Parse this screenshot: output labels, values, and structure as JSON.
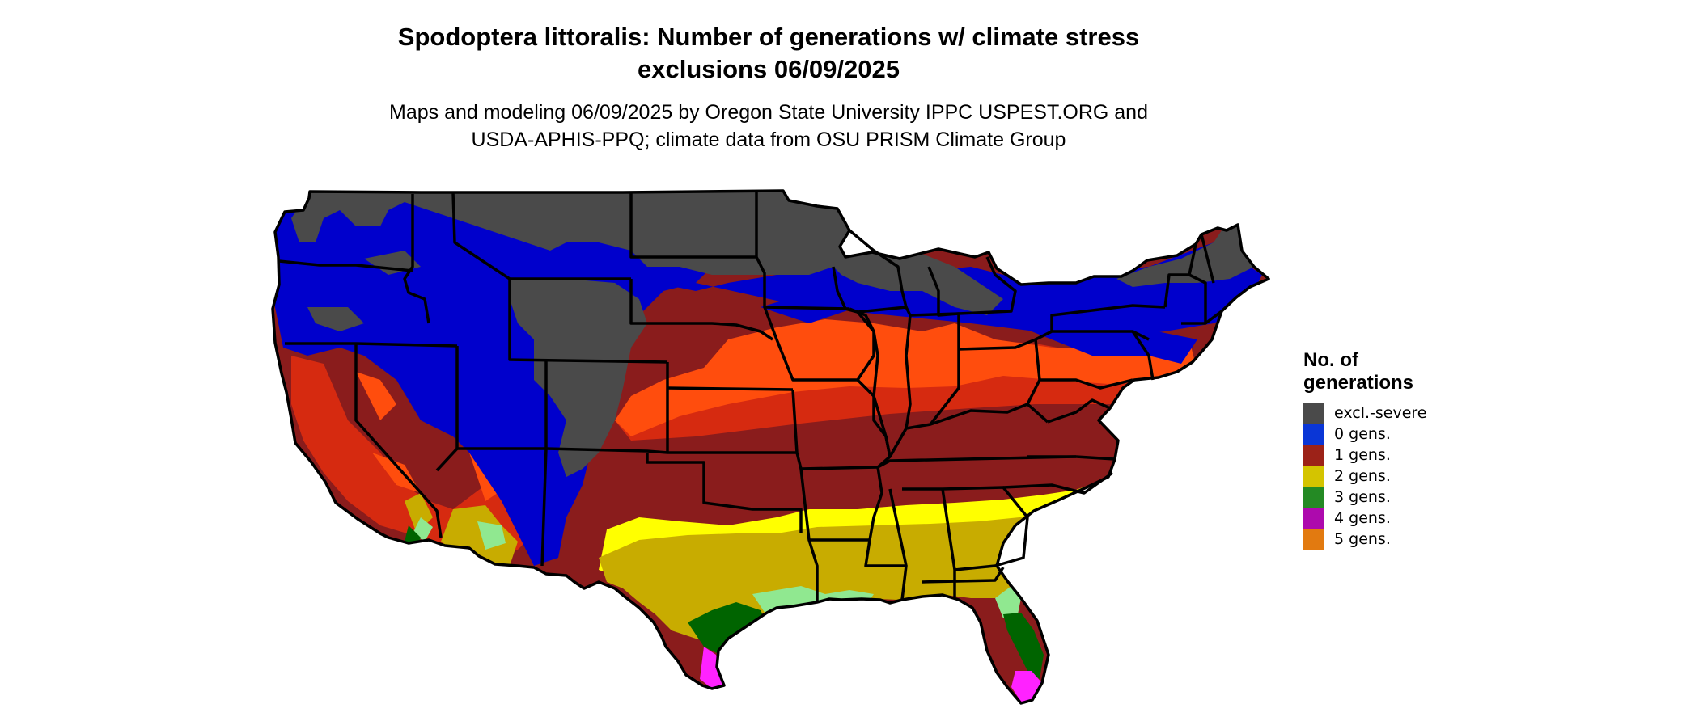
{
  "title_line1": "Spodoptera littoralis: Number of generations w/ climate stress",
  "title_line2": "exclusions 06/09/2025",
  "subtitle_line1": "Maps and modeling 06/09/2025 by Oregon State University IPPC USPEST.ORG and",
  "subtitle_line2": "USDA-APHIS-PPQ; climate data from OSU PRISM Climate Group",
  "legend": {
    "title_line1": "No. of",
    "title_line2": "generations",
    "items": [
      {
        "label": "excl.-severe",
        "color": "#4a4a4a"
      },
      {
        "label": "0 gens.",
        "color": "#0a36d6"
      },
      {
        "label": "1 gens.",
        "color": "#9c2218"
      },
      {
        "label": "2 gens.",
        "color": "#d4c400"
      },
      {
        "label": "3 gens.",
        "color": "#248a24"
      },
      {
        "label": "4 gens.",
        "color": "#ad0aad"
      },
      {
        "label": "5 gens.",
        "color": "#e27a10"
      }
    ]
  },
  "map_colors": {
    "excluded": "#4a4a4a",
    "zero": "#0000cc",
    "one_light": "#ff4d0d",
    "one_mid": "#d62a10",
    "one_dark": "#8a1c1c",
    "two_bright": "#ffff00",
    "two_gold": "#c8ac00",
    "three_light": "#90e890",
    "three_dark": "#006400",
    "four": "#ff22ff"
  }
}
